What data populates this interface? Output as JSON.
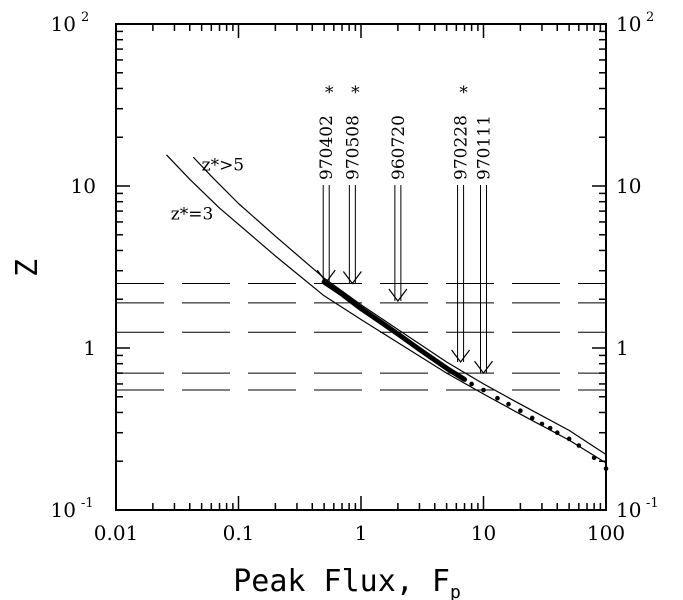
{
  "chart_data": {
    "type": "line",
    "title": "",
    "xlabel": "Peak Flux, F",
    "xlabel_subscript": "p",
    "ylabel": "Z",
    "xscale": "log",
    "yscale": "log",
    "xlim": [
      0.01,
      100
    ],
    "ylim": [
      0.1,
      100
    ],
    "x_ticks": [
      {
        "value": 0.01,
        "label": "0.01"
      },
      {
        "value": 0.1,
        "label": "0.1"
      },
      {
        "value": 1,
        "label": "1"
      },
      {
        "value": 10,
        "label": "10"
      },
      {
        "value": 100,
        "label": "100"
      }
    ],
    "y_ticks_left": [
      {
        "value": 0.1,
        "base": "10",
        "exp": "-1"
      },
      {
        "value": 1,
        "base": "1",
        "exp": ""
      },
      {
        "value": 10,
        "base": "10",
        "exp": ""
      },
      {
        "value": 100,
        "base": "10",
        "exp": "2"
      }
    ],
    "y_ticks_right": [
      {
        "value": 0.1,
        "base": "10",
        "exp": "-1"
      },
      {
        "value": 1,
        "base": "1",
        "exp": ""
      },
      {
        "value": 10,
        "base": "10",
        "exp": ""
      },
      {
        "value": 100,
        "base": "10",
        "exp": "2"
      }
    ],
    "series": [
      {
        "label": "z*>5",
        "style": "thin",
        "x": [
          0.043,
          0.06,
          0.1,
          0.2,
          0.5,
          1,
          2,
          5,
          10,
          20,
          50,
          100
        ],
        "y": [
          15.0,
          11.5,
          7.8,
          4.9,
          2.7,
          1.85,
          1.3,
          0.82,
          0.6,
          0.45,
          0.31,
          0.22
        ]
      },
      {
        "label": "z*=3",
        "style": "thin",
        "x": [
          0.026,
          0.04,
          0.07,
          0.1,
          0.2,
          0.5,
          1,
          2,
          5,
          10,
          20,
          50,
          100
        ],
        "y": [
          15.5,
          11.0,
          7.3,
          5.8,
          3.7,
          2.1,
          1.5,
          1.08,
          0.7,
          0.52,
          0.39,
          0.27,
          0.195
        ]
      },
      {
        "label": "",
        "style": "thick",
        "x": [
          0.5,
          0.7,
          1,
          1.5,
          2,
          3,
          5,
          7
        ],
        "y": [
          2.55,
          2.15,
          1.75,
          1.42,
          1.22,
          0.98,
          0.75,
          0.64
        ]
      },
      {
        "label": "",
        "style": "points",
        "x": [
          8,
          10,
          13,
          16,
          20,
          25,
          30,
          35,
          40,
          50,
          60,
          80,
          100
        ],
        "y": [
          0.6,
          0.55,
          0.49,
          0.45,
          0.41,
          0.37,
          0.34,
          0.32,
          0.3,
          0.275,
          0.25,
          0.21,
          0.18
        ]
      }
    ],
    "hlines": [
      2.5,
      1.9,
      1.25,
      0.7,
      0.55
    ],
    "annotations": [
      {
        "text": "970402",
        "star": true,
        "x": 0.52,
        "y_end": 2.55
      },
      {
        "text": "970508",
        "star": true,
        "x": 0.85,
        "y_end": 2.5
      },
      {
        "text": "960720",
        "star": false,
        "x": 2.0,
        "y_end": 1.95
      },
      {
        "text": "970228",
        "star": true,
        "x": 6.5,
        "y_end": 0.82
      },
      {
        "text": "970111",
        "star": false,
        "x": 10,
        "y_end": 0.7
      }
    ],
    "curve_labels": [
      {
        "text": "z*>5",
        "x": 0.05,
        "y": 12.5
      },
      {
        "text": "z*=3",
        "x": 0.028,
        "y": 6.2
      }
    ]
  }
}
